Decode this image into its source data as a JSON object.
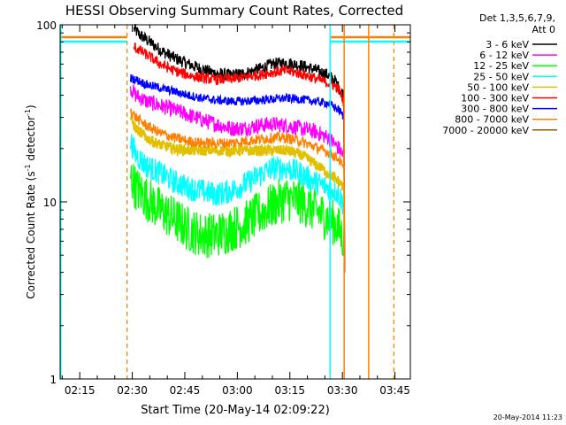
{
  "chart_data": {
    "type": "line",
    "title": "HESSI Observing Summary Count Rates, Corrected",
    "xlabel": "Start Time (20-May-14 02:09:22)",
    "ylabel_main": "Corrected Count Rate (s",
    "ylabel_sup1": "-1",
    "ylabel_mid": " detector",
    "ylabel_sup2": "-1",
    "ylabel_end": ")",
    "yscale": "log",
    "ylim": [
      1,
      100
    ],
    "xlim_minutes": [
      129.4,
      229.4
    ],
    "x_ticks": [
      {
        "minutes": 135,
        "label": "02:15"
      },
      {
        "minutes": 150,
        "label": "02:30"
      },
      {
        "minutes": 165,
        "label": "02:45"
      },
      {
        "minutes": 180,
        "label": "03:00"
      },
      {
        "minutes": 195,
        "label": "03:15"
      },
      {
        "minutes": 210,
        "label": "03:30"
      },
      {
        "minutes": 225,
        "label": "03:45"
      }
    ],
    "y_ticks": [
      {
        "value": 1,
        "label": "1"
      },
      {
        "value": 10,
        "label": "10"
      },
      {
        "value": 100,
        "label": "100"
      }
    ],
    "legend_header": [
      "Det 1,3,5,6,7,9,",
      "Att 0"
    ],
    "legend_placement": "right",
    "series": [
      {
        "name": "3 - 6 keV",
        "color": "#000000",
        "x": [
          150.5,
          152,
          155,
          158,
          162,
          166,
          170,
          174,
          178,
          182,
          186,
          190,
          194,
          198,
          202,
          206,
          208,
          209,
          210.5
        ],
        "y": [
          95,
          88,
          80,
          72,
          65,
          60,
          56,
          53,
          52,
          53,
          56,
          60,
          61,
          59,
          56,
          52,
          48,
          44,
          40
        ]
      },
      {
        "name": "6 - 12 keV",
        "color": "#ff00ff",
        "x": [
          149.5,
          151,
          154,
          158,
          162,
          166,
          170,
          174,
          178,
          182,
          186,
          190,
          194,
          198,
          202,
          206,
          208,
          209,
          210.5
        ],
        "y": [
          44,
          40,
          37,
          35,
          33,
          31,
          29,
          27.5,
          26,
          26,
          27,
          27.5,
          27,
          26,
          25,
          23,
          21,
          20,
          18
        ]
      },
      {
        "name": "12 - 25 keV",
        "color": "#00ff00",
        "x": [
          149.5,
          151,
          154,
          158,
          162,
          166,
          170,
          174,
          178,
          182,
          186,
          190,
          194,
          198,
          202,
          206,
          208,
          209,
          210.5
        ],
        "y": [
          14,
          12,
          10.5,
          9,
          8,
          7,
          6.5,
          6.5,
          7,
          7.5,
          8.5,
          9.5,
          10.5,
          10,
          9,
          8,
          7.5,
          7,
          6
        ]
      },
      {
        "name": "25 - 50 keV",
        "color": "#00ffff",
        "x": [
          149.5,
          151,
          154,
          158,
          162,
          166,
          170,
          174,
          178,
          182,
          186,
          190,
          194,
          198,
          202,
          206,
          208,
          209,
          210.5
        ],
        "y": [
          22,
          18.5,
          16,
          14.5,
          13,
          12,
          11.5,
          11,
          11.5,
          12.5,
          14,
          15.5,
          15.5,
          14.5,
          13,
          12,
          11.5,
          11,
          9.5
        ]
      },
      {
        "name": "50 - 100 keV",
        "color": "#e0c000",
        "x": [
          149.5,
          151,
          154,
          158,
          162,
          166,
          170,
          174,
          178,
          182,
          186,
          190,
          194,
          198,
          202,
          206,
          208,
          209,
          210.5
        ],
        "y": [
          30,
          26,
          23,
          21,
          20,
          19.5,
          19.5,
          19.5,
          19.5,
          19.5,
          19.5,
          19.5,
          19.5,
          18.5,
          16.5,
          14.5,
          13.5,
          13,
          12
        ]
      },
      {
        "name": "100 - 300 keV",
        "color": "#ff0000",
        "x": [
          150.5,
          152,
          155,
          158,
          162,
          166,
          170,
          174,
          178,
          182,
          186,
          190,
          194,
          198,
          202,
          206,
          208,
          209,
          210.5
        ],
        "y": [
          75,
          72,
          66,
          60,
          55,
          52,
          50,
          49,
          49.5,
          50.5,
          52,
          54,
          55,
          53,
          50,
          47,
          45,
          43,
          36
        ]
      },
      {
        "name": "300 - 800 keV",
        "color": "#0000ff",
        "x": [
          149.5,
          151,
          154,
          158,
          162,
          166,
          170,
          174,
          178,
          182,
          186,
          190,
          194,
          198,
          202,
          206,
          208,
          209,
          210.5
        ],
        "y": [
          50,
          49,
          46,
          44,
          42,
          40,
          38.5,
          37.5,
          37,
          37,
          37.5,
          38,
          38.5,
          38,
          37,
          36,
          34,
          33,
          30
        ]
      },
      {
        "name": "800 - 7000 keV",
        "color": "#ff8000",
        "x": [
          149.5,
          151,
          154,
          158,
          162,
          166,
          170,
          174,
          178,
          182,
          186,
          190,
          194,
          198,
          202,
          206,
          208,
          209,
          210.5
        ],
        "y": [
          33,
          30,
          27,
          24.5,
          23,
          22,
          21.5,
          21.5,
          21.5,
          22,
          22.5,
          23,
          23,
          22,
          20.5,
          19,
          18,
          17.5,
          15
        ]
      },
      {
        "name": "7000 - 20000 keV",
        "color": "#8b5a00",
        "x": [],
        "y": []
      }
    ]
  },
  "footer_timestamp": "20-May-2014 11:23"
}
